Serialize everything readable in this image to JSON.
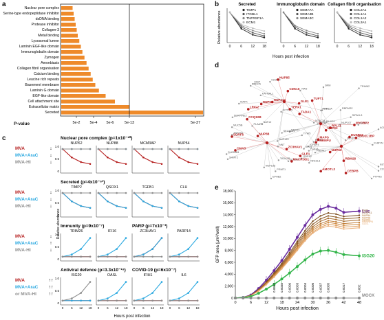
{
  "panels": {
    "a": "a",
    "b": "b",
    "c": "c",
    "d": "d",
    "e": "e"
  },
  "colors": {
    "orange": "#ee8a2a",
    "red": "#b51e1e",
    "blue": "#29a8e0",
    "grey": "#8c8c8c",
    "purple": "#6a2c9e",
    "green": "#33b54a"
  },
  "panel_a": {
    "chart_data": {
      "type": "bar",
      "orientation": "horizontal",
      "categories": [
        "Nuclear pore complex",
        "Serine-type endopeptidase inhibitor",
        "dsDNA binding",
        "Protease inhibitor",
        "Collagen-3",
        "Metal binding",
        "Lysosomal lumen",
        "Laminin EGF-like domain",
        "Immunoglobulin domain",
        "Zymogen",
        "Amoebiasis",
        "Collagen fibril organisation",
        "Calcium binding",
        "Leucine rich repeats",
        "Basement membrane",
        "Laminin G domain",
        "EGF-like domain",
        "Cell attachment site",
        "Extracellular matrix",
        "Secreted"
      ],
      "values_neglog10": [
        2.2,
        2.4,
        2.6,
        2.8,
        3.0,
        3.2,
        3.5,
        3.8,
        4.1,
        4.5,
        4.9,
        5.3,
        5.7,
        6.1,
        6.6,
        7.3,
        8.6,
        10.4,
        13.2,
        36.3
      ],
      "xlabel": "P-value",
      "xticks": [
        "5e-2",
        "5e-4",
        "5e-6",
        "5e-13",
        "5e-37"
      ],
      "threshold": "5e-13"
    }
  },
  "panel_b": {
    "ylabel": "Relative abundance",
    "xlabel": "Hours post infection",
    "xticks": [
      "0",
      "6",
      "12",
      "18"
    ],
    "charts": [
      {
        "title": "Secreted",
        "legend": [
          "TIMP1",
          "ITGBL1",
          "TNFRSF1A",
          "ECM1"
        ]
      },
      {
        "title": "Immunoglobulin domain",
        "legend": [
          "SEMA7A",
          "SEMA3B",
          "SEMA3C"
        ]
      },
      {
        "title": "Collagen fibril organisation",
        "legend": [
          "COL2A1",
          "COL1A1",
          "COL1A2",
          "COL3A1"
        ]
      }
    ]
  },
  "panel_c": {
    "ylabel": "Relative abundance",
    "xlabel": "Hours post infection",
    "xticks": [
      "0",
      "6",
      "12",
      "18"
    ],
    "yticks": [
      "1.0",
      "0.5",
      "0"
    ],
    "conditions": [
      "MVA",
      "MVA+AraC",
      "MVA-HI",
      "or"
    ],
    "rows": [
      {
        "title": "Nuclear pore complex (p=1x10⁻¹⁰)",
        "genes": [
          "NUP62",
          "NUP88",
          "MCM3AP",
          "NUP54"
        ]
      },
      {
        "title": "Secreted (p=4x10⁻⁶³)",
        "genes": [
          "TIMP2",
          "QSOX1",
          "TGFB1",
          "CLU"
        ]
      },
      {
        "title": "Immunity (p=9x10⁻⁷)",
        "genes": [
          "TRIM26",
          "IFI16"
        ],
        "title2": "PARP (p=7x10⁻³)",
        "genes2": [
          "ZC3HAV1",
          "PARP14"
        ]
      },
      {
        "title": "Antiviral defence (p=3.3x10⁻¹⁹)",
        "genes": [
          "ISG20",
          "OASL"
        ],
        "title2": "COVID-19 (p=6x10⁻⁷)",
        "genes2": [
          "IFIH1",
          "IL6"
        ]
      }
    ]
  },
  "panel_d": {
    "nodes_red": [
      "LRIG2",
      "TADA1",
      "MACROD1",
      "MAD2L1BP",
      "GLE1",
      "TUFT1",
      "CCQ10B",
      "CEBPB",
      "TERF1",
      "RPL11",
      "SURF6",
      "DUSP11",
      "NUP214",
      "HNRNPU",
      "ZC3HAV1",
      "RBM28",
      "CDK16",
      "NUP93",
      "NUP88",
      "NUP62",
      "NUP54",
      "MYCBP2",
      "CMAS",
      "AMOTL2",
      "NUP85",
      "MAFG",
      "GLE1"
    ],
    "nodes_grey": [
      "MAFK",
      "DEUP1",
      "SLC26A4",
      "RIT1",
      "FNDC5",
      "NFE2L3",
      "PLAAT4",
      "IGFBP4",
      "IGSF10",
      "KCTD15",
      "TADA2B",
      "ACKR4",
      "NT5C3A",
      "SIPA1L3",
      "SHMT2",
      "DHX29",
      "RRM2",
      "DDX21",
      "ZNF593",
      "PTPRS",
      "NAT10",
      "KHNYN",
      "EPHB2",
      "PLA1A",
      "MGP",
      "SRM",
      "SOCS3",
      "PRDM1",
      "ENC1",
      "RAN",
      "TYW5",
      "GDF15",
      "SERPINE2",
      "SEC61A1",
      "NUP155",
      "NUP107",
      "NUP133",
      "TRIM62",
      "ELAC2",
      "RBPMS2",
      "KATNAL1",
      "XPO1",
      "PRMT1",
      "PHF21A",
      "NNT",
      "OAZ2",
      "MUC5B",
      "CCDC65"
    ]
  },
  "panel_e": {
    "chart_data": {
      "type": "line",
      "x": [
        0,
        3,
        6,
        9,
        12,
        15,
        18,
        21,
        24,
        27,
        30,
        33,
        36,
        39,
        42,
        48
      ],
      "xlabel": "Hours post infection",
      "ylabel": "GFP area (μm²/well)",
      "ylim": [
        0,
        18000
      ],
      "xticks": [
        0,
        6,
        12,
        18,
        24,
        30,
        36,
        42,
        48
      ],
      "yticks": [
        0,
        2000,
        4000,
        6000,
        8000,
        10000,
        12000,
        14000,
        16000,
        18000
      ],
      "series": [
        {
          "name": "Luc",
          "values": [
            0,
            100,
            500,
            1600,
            3000,
            4600,
            6300,
            8200,
            10200,
            12200,
            14000,
            14900,
            15400,
            15100,
            14400,
            14600
          ]
        },
        {
          "name": "OASL",
          "values": [
            0,
            100,
            450,
            1400,
            2700,
            4200,
            5800,
            7600,
            9500,
            11300,
            12900,
            13800,
            14300,
            14100,
            13700,
            13900
          ]
        },
        {
          "name": "DUSP11",
          "values": [
            0,
            100,
            430,
            1350,
            2600,
            4050,
            5600,
            7300,
            9200,
            10900,
            12400,
            13300,
            13800,
            13600,
            13300,
            13500
          ]
        },
        {
          "name": "NUP54",
          "values": [
            0,
            90,
            410,
            1300,
            2500,
            3900,
            5400,
            7100,
            8900,
            10600,
            12000,
            12900,
            13400,
            13200,
            12900,
            13100
          ]
        },
        {
          "name": "NUP98",
          "values": [
            0,
            90,
            400,
            1250,
            2400,
            3800,
            5250,
            6900,
            8600,
            10300,
            11700,
            12500,
            13000,
            12800,
            12500,
            12700
          ]
        },
        {
          "name": "NUP62",
          "values": [
            0,
            90,
            390,
            1200,
            2350,
            3700,
            5100,
            6700,
            8400,
            10000,
            11400,
            12200,
            12700,
            12500,
            12200,
            12400
          ]
        },
        {
          "name": "HNRNPU",
          "values": [
            0,
            85,
            380,
            1180,
            2300,
            3600,
            5000,
            6500,
            8200,
            9800,
            11100,
            11900,
            12400,
            12200,
            11900,
            12100
          ]
        },
        {
          "name": "GLE1",
          "values": [
            0,
            85,
            370,
            1150,
            2250,
            3500,
            4900,
            6400,
            8000,
            9600,
            10900,
            11700,
            12100,
            11900,
            11600,
            11800
          ]
        },
        {
          "name": "ISG20",
          "values": [
            0,
            60,
            250,
            800,
            1500,
            2300,
            3200,
            4200,
            5300,
            6400,
            7400,
            7900,
            8000,
            7700,
            7300,
            7100
          ]
        },
        {
          "name": "MOCK",
          "values": [
            0,
            0,
            0,
            0,
            0,
            0,
            0,
            0,
            0,
            0,
            0,
            0,
            0,
            0,
            0,
            0
          ]
        }
      ],
      "legend_right": [
        "Luc",
        "ISG20",
        "MOCK"
      ],
      "pvalues": [
        "0.0012",
        "0.0035",
        "0.0006",
        "0.0003",
        "0.0004",
        "0.0006",
        "0.0037",
        "0.0005",
        "0.0017",
        "0.002"
      ]
    }
  }
}
